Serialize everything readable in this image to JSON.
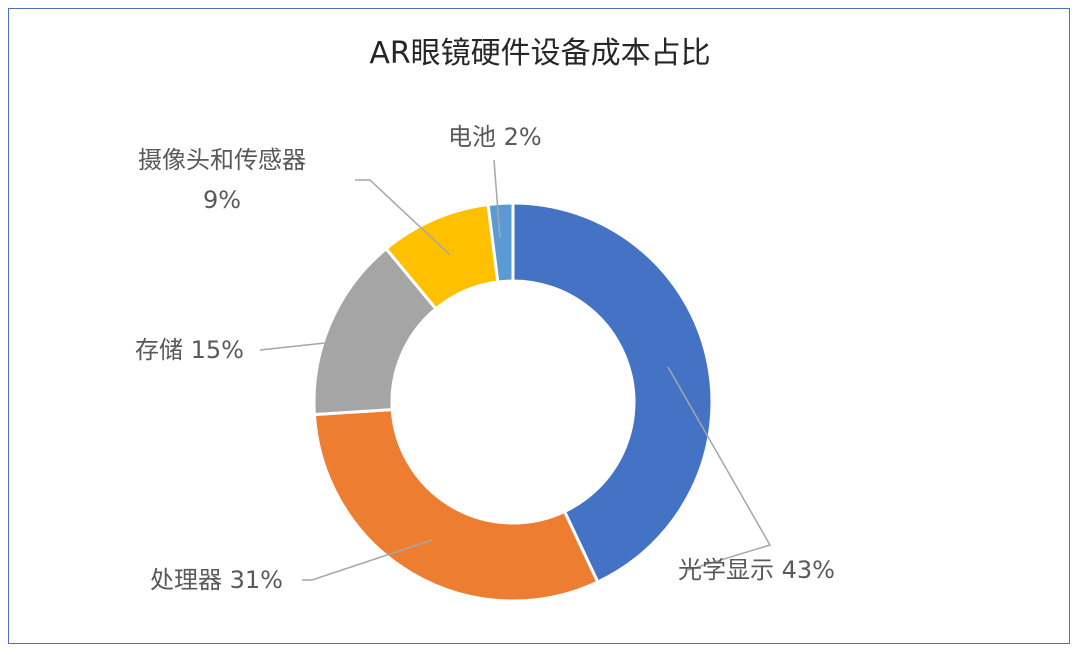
{
  "chart_data": {
    "type": "pie",
    "subtype": "donut",
    "title": "AR眼镜硬件设备成本占比",
    "slices": [
      {
        "name": "光学显示",
        "value": 43,
        "label": "光学显示 43%",
        "color": "#4472c4"
      },
      {
        "name": "处理器",
        "value": 31,
        "label": "处理器 31%",
        "color": "#ed7d31"
      },
      {
        "name": "存储",
        "value": 15,
        "label": "存储 15%",
        "color": "#a5a5a5"
      },
      {
        "name": "摄像头和传感器",
        "value": 9,
        "label_line1": "摄像头和传感器",
        "label_line2": "9%",
        "color": "#ffc000"
      },
      {
        "name": "电池",
        "value": 2,
        "label": "电池 2%",
        "color": "#5b9bd5"
      }
    ]
  }
}
